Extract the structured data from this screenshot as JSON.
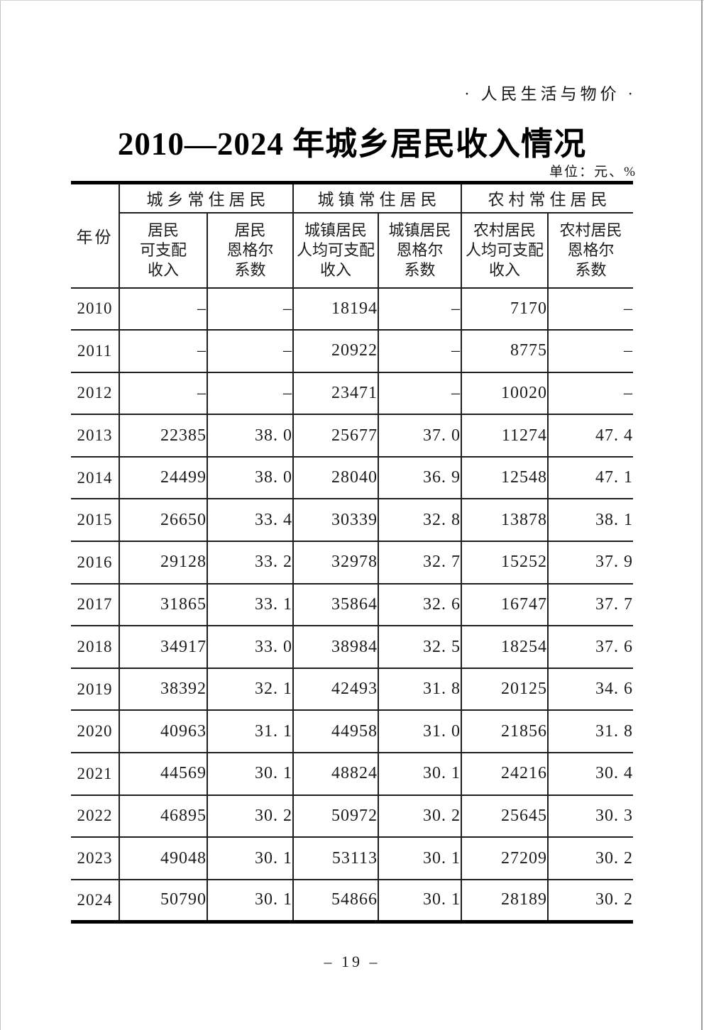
{
  "page": {
    "header_right": "· 人民生活与物价 ·",
    "title": "2010—2024 年城乡居民收入情况",
    "unit_note": "单位：元、%",
    "page_number": "– 19 –"
  },
  "table": {
    "year_header": "年份",
    "groups": [
      {
        "label": "城乡常住居民",
        "columns": [
          "居民\n可支配\n收入",
          "居民\n恩格尔\n系数"
        ]
      },
      {
        "label": "城镇常住居民",
        "columns": [
          "城镇居民\n人均可支配\n收入",
          "城镇居民\n恩格尔\n系数"
        ]
      },
      {
        "label": "农村常住居民",
        "columns": [
          "农村居民\n人均可支配\n收入",
          "农村居民\n恩格尔\n系数"
        ]
      }
    ],
    "rows": [
      {
        "year": "2010",
        "values": [
          "–",
          "–",
          "18194",
          "–",
          "7170",
          "–"
        ]
      },
      {
        "year": "2011",
        "values": [
          "–",
          "–",
          "20922",
          "–",
          "8775",
          "–"
        ]
      },
      {
        "year": "2012",
        "values": [
          "–",
          "–",
          "23471",
          "–",
          "10020",
          "–"
        ]
      },
      {
        "year": "2013",
        "values": [
          "22385",
          "38. 0",
          "25677",
          "37. 0",
          "11274",
          "47. 4"
        ]
      },
      {
        "year": "2014",
        "values": [
          "24499",
          "38. 0",
          "28040",
          "36. 9",
          "12548",
          "47. 1"
        ]
      },
      {
        "year": "2015",
        "values": [
          "26650",
          "33. 4",
          "30339",
          "32. 8",
          "13878",
          "38. 1"
        ]
      },
      {
        "year": "2016",
        "values": [
          "29128",
          "33. 2",
          "32978",
          "32. 7",
          "15252",
          "37. 9"
        ]
      },
      {
        "year": "2017",
        "values": [
          "31865",
          "33. 1",
          "35864",
          "32. 6",
          "16747",
          "37. 7"
        ]
      },
      {
        "year": "2018",
        "values": [
          "34917",
          "33. 0",
          "38984",
          "32. 5",
          "18254",
          "37. 6"
        ]
      },
      {
        "year": "2019",
        "values": [
          "38392",
          "32. 1",
          "42493",
          "31. 8",
          "20125",
          "34. 6"
        ]
      },
      {
        "year": "2020",
        "values": [
          "40963",
          "31. 1",
          "44958",
          "31. 0",
          "21856",
          "31. 8"
        ]
      },
      {
        "year": "2021",
        "values": [
          "44569",
          "30. 1",
          "48824",
          "30. 1",
          "24216",
          "30. 4"
        ]
      },
      {
        "year": "2022",
        "values": [
          "46895",
          "30. 2",
          "50972",
          "30. 2",
          "25645",
          "30. 3"
        ]
      },
      {
        "year": "2023",
        "values": [
          "49048",
          "30. 1",
          "53113",
          "30. 1",
          "27209",
          "30. 2"
        ]
      },
      {
        "year": "2024",
        "values": [
          "50790",
          "30. 1",
          "54866",
          "30. 1",
          "28189",
          "30. 2"
        ]
      }
    ]
  }
}
